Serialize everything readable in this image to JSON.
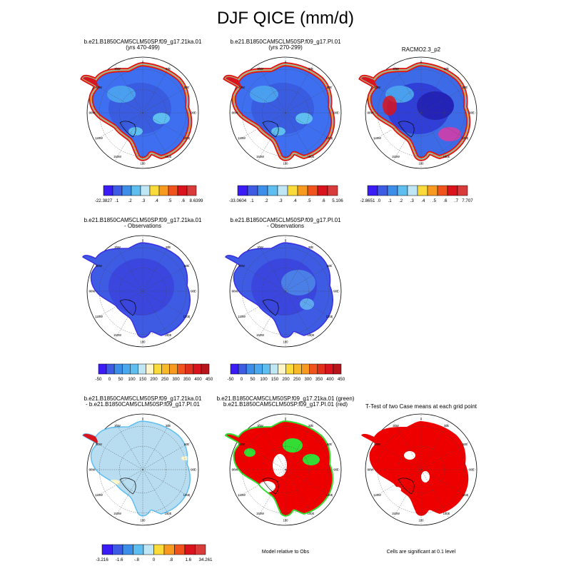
{
  "figure": {
    "title": "DJF QICE (mm/d)"
  },
  "panels": [
    {
      "title": [
        "b.e21.B1850CAM5CLM50SP.f09_g17.21ka.01",
        "(yrs 470-499)"
      ],
      "scheme": "model_a"
    },
    {
      "title": [
        "b.e21.B1850CAM5CLM50SP.f09_g17.PI.01",
        "(yrs 270-299)"
      ],
      "scheme": "model_b"
    },
    {
      "title": [
        "RACMO2.3_p2"
      ],
      "scheme": "racmo"
    },
    {
      "title": [
        "b.e21.B1850CAM5CLM50SP.f09_g17.21ka.01",
        "- Observations"
      ],
      "scheme": "bias_a"
    },
    {
      "title": [
        "b.e21.B1850CAM5CLM50SP.f09_g17.PI.01",
        "- Observations"
      ],
      "scheme": "bias_b"
    },
    {
      "title": [
        "b.e21.B1850CAM5CLM50SP.f09_g17.21ka.01",
        "- b.e21.B1850CAM5CLM50SP.f09_g17.PI.01"
      ],
      "scheme": "diff"
    },
    {
      "title": [
        "b.e21.B1850CAM5CLM50SP.f09_g17.21ka.01 (green)",
        "b.e21.B1850CAM5CLM50SP.f09_g17.PI.01 (red)"
      ],
      "scheme": "relative",
      "note": "Model relative to Obs"
    },
    {
      "title": [
        "T-Test of two Case means at each grid point"
      ],
      "scheme": "ttest",
      "note": "Cells are significant at 0.1 level"
    }
  ],
  "longitude_labels": [
    "0",
    "30E",
    "60E",
    "90E",
    "120E",
    "150E",
    "180",
    "150W",
    "120W",
    "90W",
    "60W",
    "30W"
  ],
  "colorbars": [
    {
      "colors": [
        "#3b1cf5",
        "#3d5be3",
        "#3d8ee8",
        "#5fbef0",
        "#bfe6f5",
        "#fadb3a",
        "#f79a1f",
        "#f0541c",
        "#d9141c",
        "#d93b3b"
      ],
      "labels": [
        "-22.3827",
        ".1",
        ".2",
        ".3",
        ".4",
        ".5",
        ".6",
        "8.6399"
      ]
    },
    {
      "colors": [
        "#3b1cf5",
        "#3d5be3",
        "#3d8ee8",
        "#5fbef0",
        "#bfe6f5",
        "#fadb3a",
        "#f79a1f",
        "#f0541c",
        "#d9141c",
        "#d93b3b"
      ],
      "labels": [
        "-33.0604",
        ".1",
        ".2",
        ".3",
        ".4",
        ".5",
        ".6",
        "5.106"
      ]
    },
    {
      "colors": [
        "#3b1cf5",
        "#3d5be3",
        "#3d8ee8",
        "#5fbef0",
        "#bfe6f5",
        "#fadb3a",
        "#f79a1f",
        "#f0541c",
        "#d9141c",
        "#d93b3b"
      ],
      "labels": [
        "-2.8651",
        ".0",
        ".1",
        ".2",
        ".3",
        ".4",
        ".5",
        ".6",
        ".7",
        "7.707"
      ]
    },
    {
      "colors": [
        "#3b1cf5",
        "#3d5be3",
        "#3d8ee8",
        "#4aa8ee",
        "#5fbef0",
        "#bfe6f5",
        "#fff5c8",
        "#fadb3a",
        "#f7b82a",
        "#f79a1f",
        "#f0541c",
        "#e0301c",
        "#d9141c",
        "#b8141c"
      ],
      "labels": [
        "-50",
        "0",
        "50",
        "100",
        "150",
        "200",
        "250",
        "300",
        "350",
        "400",
        "450"
      ]
    },
    {
      "colors": [
        "#3b1cf5",
        "#3d5be3",
        "#3d8ee8",
        "#4aa8ee",
        "#5fbef0",
        "#bfe6f5",
        "#fff5c8",
        "#fadb3a",
        "#f7b82a",
        "#f79a1f",
        "#f0541c",
        "#e0301c",
        "#d9141c",
        "#b8141c"
      ],
      "labels": [
        "-50",
        "0",
        "50",
        "100",
        "150",
        "200",
        "250",
        "300",
        "350",
        "400",
        "450"
      ]
    },
    {
      "colors": [
        "#3b1cf5",
        "#3d5be3",
        "#3d8ee8",
        "#5fbef0",
        "#bfe6f5",
        "#fadb3a",
        "#f79a1f",
        "#f0541c",
        "#d9141c",
        "#d93b3b"
      ],
      "labels": [
        "-3.216",
        "-1.6",
        "-.8",
        "0",
        ".8",
        "1.6",
        "34.261"
      ]
    }
  ],
  "chart_data": {
    "type": "heatmap",
    "title": "DJF QICE (mm/d)",
    "projection": "south polar stereographic (Antarctica)",
    "panel_count": 8,
    "colorbar_ranges": [
      {
        "panel": "b.e21.B1850CAM5CLM50SP.f09_g17.21ka.01 (yrs 470-499)",
        "min": -22.3827,
        "max": 8.6399,
        "ticks": [
          0.1,
          0.2,
          0.3,
          0.4,
          0.5,
          0.6
        ]
      },
      {
        "panel": "b.e21.B1850CAM5CLM50SP.f09_g17.PI.01 (yrs 270-299)",
        "min": -33.0604,
        "max": 5.106,
        "ticks": [
          0.1,
          0.2,
          0.3,
          0.4,
          0.5,
          0.6
        ]
      },
      {
        "panel": "RACMO2.3_p2",
        "min": -2.8651,
        "max": 7.707,
        "ticks": [
          0.0,
          0.1,
          0.2,
          0.3,
          0.4,
          0.5,
          0.6,
          0.7
        ]
      },
      {
        "panel": "21ka.01 - Observations",
        "ticks": [
          -50,
          0,
          50,
          100,
          150,
          200,
          250,
          300,
          350,
          400,
          450
        ]
      },
      {
        "panel": "PI.01 - Observations",
        "ticks": [
          -50,
          0,
          50,
          100,
          150,
          200,
          250,
          300,
          350,
          400,
          450
        ]
      },
      {
        "panel": "21ka.01 - PI.01",
        "min": -3.216,
        "max": 34.261,
        "ticks": [
          -1.6,
          -0.8,
          0,
          0.8,
          1.6
        ]
      }
    ],
    "mask_colors": {
      "significant": "#ee0000",
      "model_green": "#33dd33",
      "model_red": "#ee0000"
    }
  }
}
